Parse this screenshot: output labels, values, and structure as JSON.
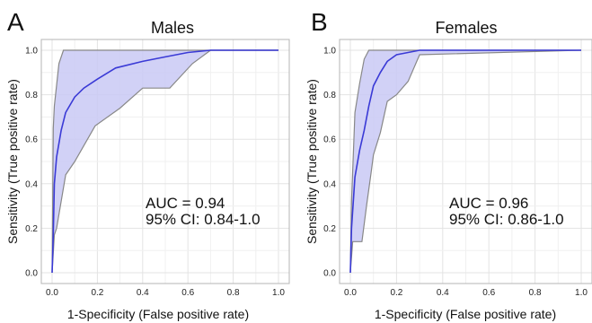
{
  "chart_data": [
    {
      "type": "line",
      "panel_letter": "A",
      "title": "Males",
      "xlabel": "1-Specificity (False positive rate)",
      "ylabel": "Sensitivity (True positive rate)",
      "xlim": [
        0,
        1
      ],
      "ylim": [
        0,
        1
      ],
      "xticks": [
        "0.0",
        "0.2",
        "0.4",
        "0.6",
        "0.8",
        "1.0"
      ],
      "yticks": [
        "0.0",
        "0.2",
        "0.4",
        "0.6",
        "0.8",
        "1.0"
      ],
      "grid": true,
      "annotations": [
        "AUC = 0.94",
        "95% CI: 0.84-1.0"
      ],
      "colors": {
        "line": "#3a3ad6",
        "band": "#c9c9f5",
        "band_edge": "#888888"
      },
      "series": [
        {
          "x": [
            0,
            0.005,
            0.01,
            0.02,
            0.04,
            0.06,
            0.1,
            0.14,
            0.2,
            0.28,
            0.4,
            0.5,
            0.6,
            0.7,
            0.8,
            1.0
          ],
          "y": [
            0,
            0.17,
            0.4,
            0.52,
            0.64,
            0.72,
            0.79,
            0.83,
            0.87,
            0.92,
            0.95,
            0.97,
            0.99,
            1.0,
            1.0,
            1.0
          ]
        }
      ],
      "ci_upper": {
        "x": [
          0,
          0.005,
          0.01,
          0.03,
          0.05,
          1.0
        ],
        "y": [
          0,
          0.65,
          0.75,
          0.94,
          1.0,
          1.0
        ]
      },
      "ci_lower": {
        "x": [
          0,
          0.01,
          0.02,
          0.06,
          0.1,
          0.19,
          0.3,
          0.4,
          0.5,
          0.52,
          0.62,
          0.7,
          1.0
        ],
        "y": [
          0,
          0.17,
          0.2,
          0.44,
          0.5,
          0.66,
          0.74,
          0.83,
          0.83,
          0.83,
          0.94,
          1.0,
          1.0
        ]
      }
    },
    {
      "type": "line",
      "panel_letter": "B",
      "title": "Females",
      "xlabel": "1-Specificity (False positive rate)",
      "ylabel": "Sensitivity (True positive rate)",
      "xlim": [
        0,
        1
      ],
      "ylim": [
        0,
        1
      ],
      "xticks": [
        "0.0",
        "0.2",
        "0.4",
        "0.6",
        "0.8",
        "1.0"
      ],
      "yticks": [
        "0.0",
        "0.2",
        "0.4",
        "0.6",
        "0.8",
        "1.0"
      ],
      "grid": true,
      "annotations": [
        "AUC = 0.96",
        "95% CI: 0.86-1.0"
      ],
      "colors": {
        "line": "#3a3ad6",
        "band": "#c9c9f5",
        "band_edge": "#888888"
      },
      "series": [
        {
          "x": [
            0,
            0.005,
            0.02,
            0.04,
            0.06,
            0.08,
            0.1,
            0.13,
            0.16,
            0.2,
            0.25,
            0.3,
            0.4,
            1.0
          ],
          "y": [
            0,
            0.2,
            0.43,
            0.55,
            0.64,
            0.75,
            0.84,
            0.9,
            0.95,
            0.98,
            0.99,
            1.0,
            1.0,
            1.0
          ]
        }
      ],
      "ci_upper": {
        "x": [
          0,
          0.005,
          0.02,
          0.04,
          0.06,
          0.08,
          1.0
        ],
        "y": [
          0,
          0.32,
          0.72,
          0.85,
          0.96,
          1.0,
          1.0
        ]
      },
      "ci_lower": {
        "x": [
          0,
          0.01,
          0.05,
          0.07,
          0.09,
          0.1,
          0.13,
          0.16,
          0.2,
          0.25,
          0.3,
          1.0
        ],
        "y": [
          0,
          0.14,
          0.14,
          0.3,
          0.45,
          0.53,
          0.63,
          0.77,
          0.8,
          0.86,
          0.98,
          1.0
        ]
      }
    }
  ]
}
